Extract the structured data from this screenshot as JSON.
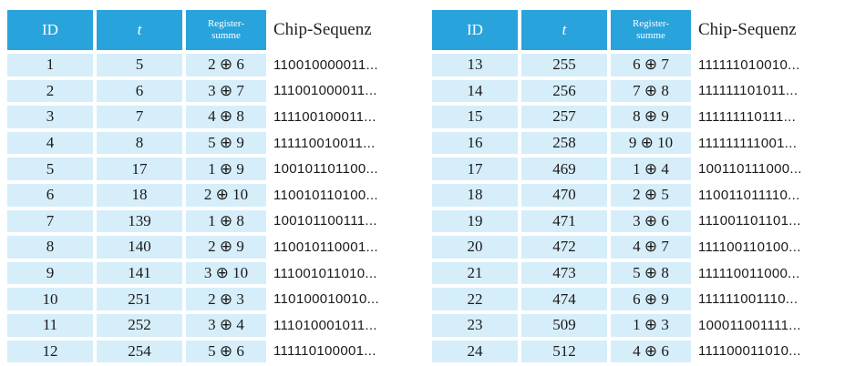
{
  "headers": {
    "id": "ID",
    "t": "t",
    "register_line1": "Register-",
    "register_line2": "summe",
    "chip": "Chip-Sequenz"
  },
  "left_rows": [
    {
      "id": "1",
      "t": "5",
      "reg": "2 ⊕ 6",
      "chip": "110010000011..."
    },
    {
      "id": "2",
      "t": "6",
      "reg": "3 ⊕ 7",
      "chip": "111001000011..."
    },
    {
      "id": "3",
      "t": "7",
      "reg": "4 ⊕ 8",
      "chip": "111100100011..."
    },
    {
      "id": "4",
      "t": "8",
      "reg": "5 ⊕ 9",
      "chip": "111110010011..."
    },
    {
      "id": "5",
      "t": "17",
      "reg": "1 ⊕ 9",
      "chip": "100101101100..."
    },
    {
      "id": "6",
      "t": "18",
      "reg": "2 ⊕ 10",
      "chip": "110010110100..."
    },
    {
      "id": "7",
      "t": "139",
      "reg": "1 ⊕ 8",
      "chip": "100101100111..."
    },
    {
      "id": "8",
      "t": "140",
      "reg": "2 ⊕ 9",
      "chip": "110010110001..."
    },
    {
      "id": "9",
      "t": "141",
      "reg": "3 ⊕ 10",
      "chip": "111001011010..."
    },
    {
      "id": "10",
      "t": "251",
      "reg": "2 ⊕ 3",
      "chip": "110100010010..."
    },
    {
      "id": "11",
      "t": "252",
      "reg": "3 ⊕ 4",
      "chip": "111010001011..."
    },
    {
      "id": "12",
      "t": "254",
      "reg": "5 ⊕ 6",
      "chip": "111110100001..."
    }
  ],
  "right_rows": [
    {
      "id": "13",
      "t": "255",
      "reg": "6 ⊕ 7",
      "chip": "111111010010..."
    },
    {
      "id": "14",
      "t": "256",
      "reg": "7 ⊕ 8",
      "chip": "111111101011..."
    },
    {
      "id": "15",
      "t": "257",
      "reg": "8 ⊕ 9",
      "chip": "111111110111..."
    },
    {
      "id": "16",
      "t": "258",
      "reg": "9 ⊕ 10",
      "chip": "111111111001..."
    },
    {
      "id": "17",
      "t": "469",
      "reg": "1 ⊕ 4",
      "chip": "100110111000..."
    },
    {
      "id": "18",
      "t": "470",
      "reg": "2 ⊕ 5",
      "chip": "110011011110..."
    },
    {
      "id": "19",
      "t": "471",
      "reg": "3 ⊕ 6",
      "chip": "111001101101..."
    },
    {
      "id": "20",
      "t": "472",
      "reg": "4 ⊕ 7",
      "chip": "111100110100..."
    },
    {
      "id": "21",
      "t": "473",
      "reg": "5 ⊕ 8",
      "chip": "111110011000..."
    },
    {
      "id": "22",
      "t": "474",
      "reg": "6 ⊕ 9",
      "chip": "111111001110..."
    },
    {
      "id": "23",
      "t": "509",
      "reg": "1 ⊕ 3",
      "chip": "100011001111..."
    },
    {
      "id": "24",
      "t": "512",
      "reg": "4 ⊕ 6",
      "chip": "111100011010..."
    }
  ],
  "colors": {
    "header_fill": "#29a3dc",
    "cell_fill": "#d6eefa",
    "header_text": "#ffffff"
  }
}
